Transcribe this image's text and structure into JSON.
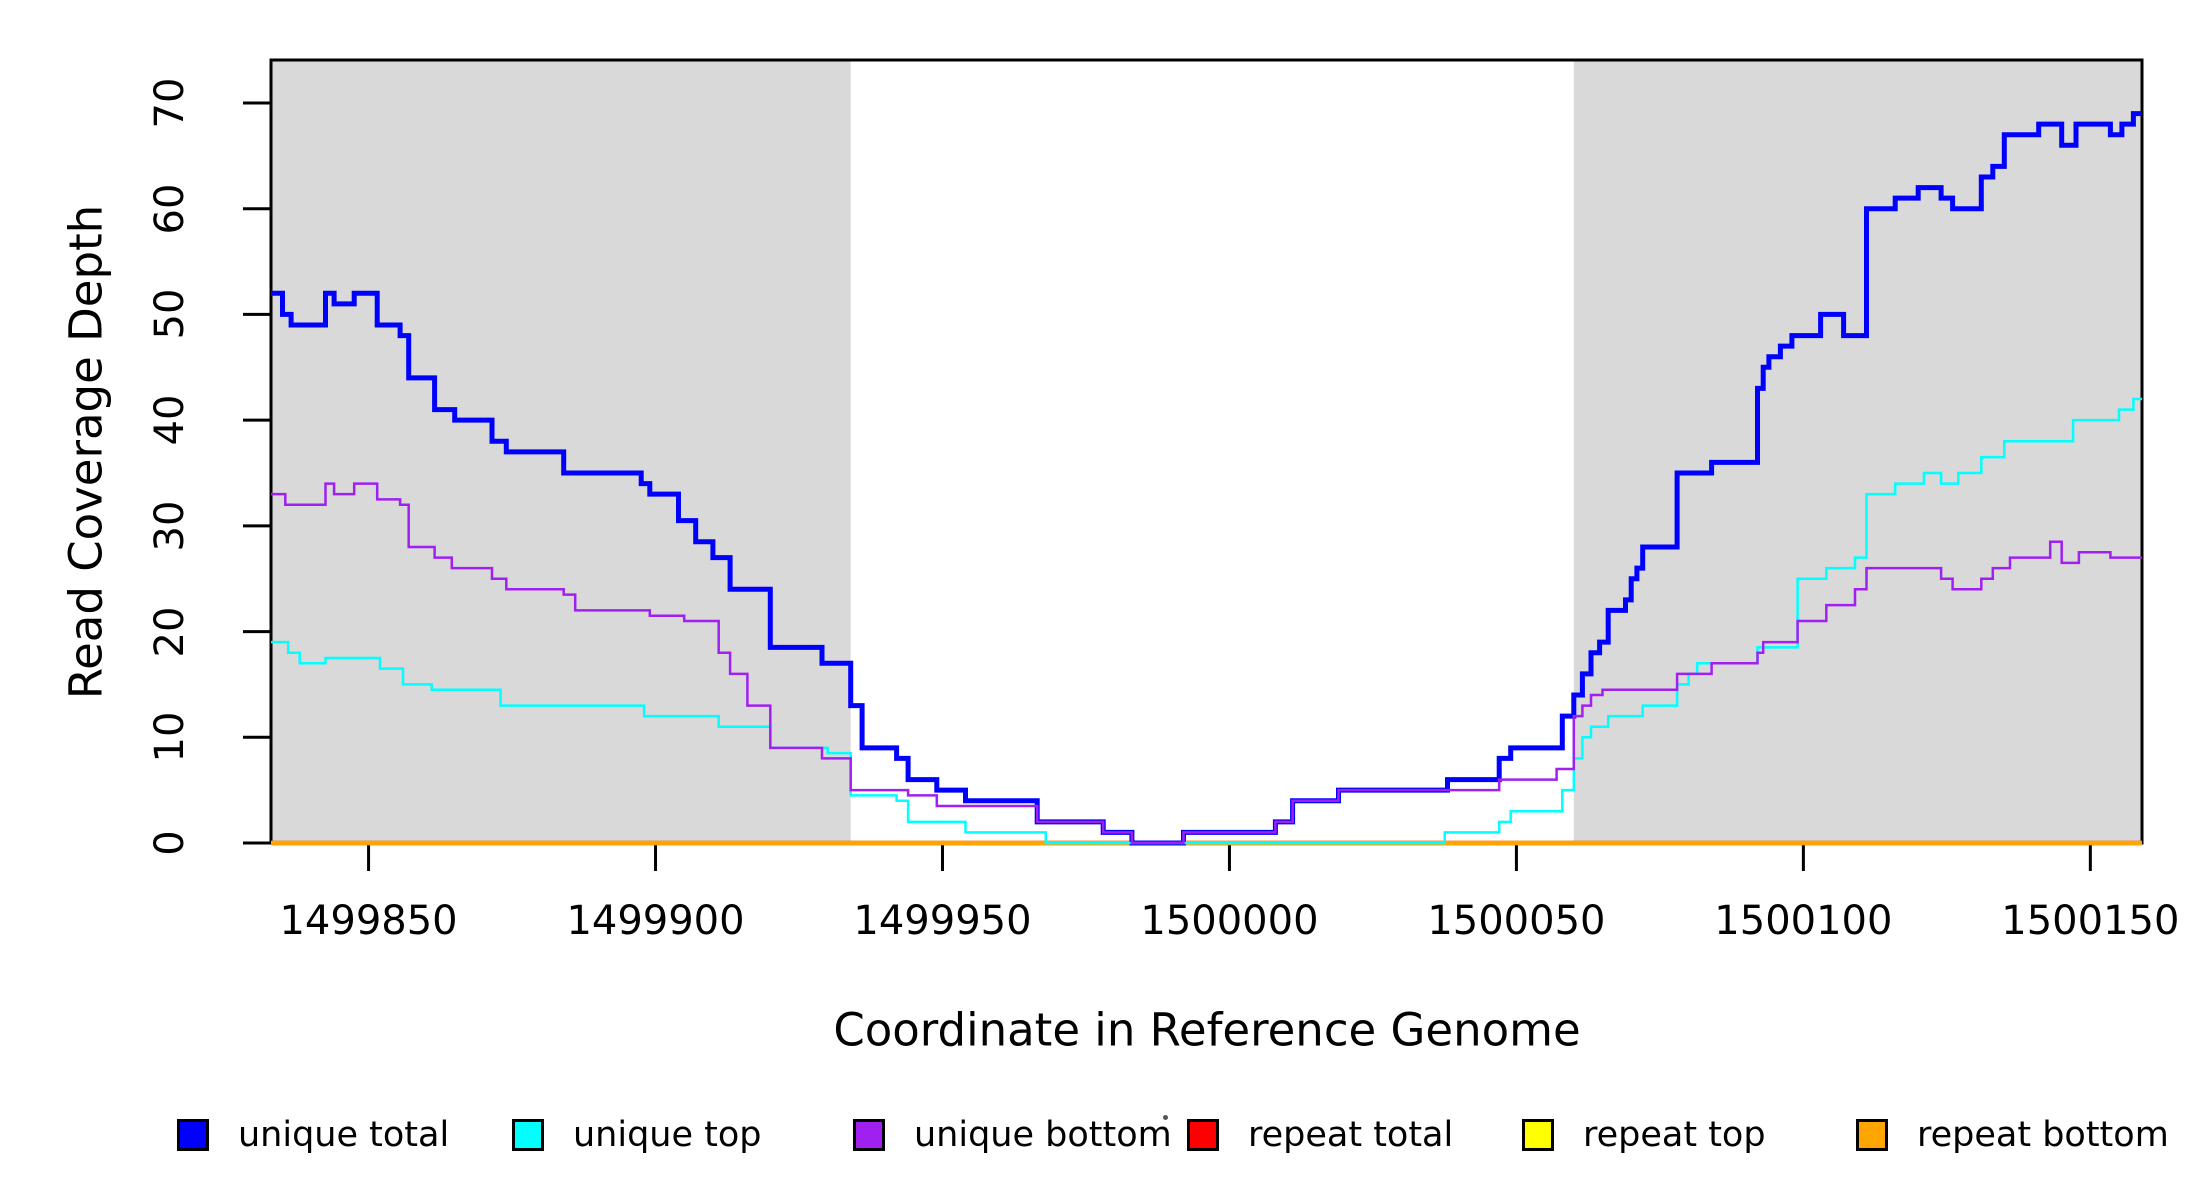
{
  "chart_data": {
    "type": "line",
    "subtype": "step-coverage",
    "title": "",
    "xlabel": "Coordinate in Reference Genome",
    "ylabel": "Read Coverage Depth",
    "xlim": [
      1499833,
      1500159
    ],
    "ylim": [
      0,
      74
    ],
    "x_ticks": [
      1499850,
      1499900,
      1499950,
      1500000,
      1500050,
      1500100,
      1500150
    ],
    "y_ticks": [
      0,
      10,
      20,
      30,
      40,
      50,
      60,
      70
    ],
    "grid": false,
    "plot_background": "#ffffff",
    "band_color": "#d9d9d9",
    "background_bands": [
      {
        "name": "left-repeat-region",
        "from": 1499833,
        "to": 1499934
      },
      {
        "name": "right-repeat-region",
        "from": 1500060,
        "to": 1500159
      }
    ],
    "series": [
      {
        "name": "unique total",
        "color": "#0000ff",
        "width": 5,
        "points": [
          [
            1499833,
            52
          ],
          [
            1499835,
            50
          ],
          [
            1499836.5,
            49
          ],
          [
            1499842.5,
            52
          ],
          [
            1499844,
            51
          ],
          [
            1499847.5,
            52
          ],
          [
            1499851.5,
            49
          ],
          [
            1499855.5,
            48
          ],
          [
            1499857,
            44
          ],
          [
            1499861.5,
            41
          ],
          [
            1499865,
            40
          ],
          [
            1499871.5,
            38
          ],
          [
            1499874,
            37
          ],
          [
            1499884,
            35
          ],
          [
            1499897.5,
            34
          ],
          [
            1499899,
            33
          ],
          [
            1499904,
            30.5
          ],
          [
            1499907,
            28.5
          ],
          [
            1499910,
            27
          ],
          [
            1499913,
            24
          ],
          [
            1499920,
            18.5
          ],
          [
            1499929,
            17
          ],
          [
            1499934,
            13
          ],
          [
            1499936,
            9
          ],
          [
            1499942,
            8
          ],
          [
            1499944,
            6
          ],
          [
            1499949,
            5
          ],
          [
            1499954,
            4
          ],
          [
            1499966.5,
            2
          ],
          [
            1499978,
            1
          ],
          [
            1499983,
            0
          ],
          [
            1499992,
            1
          ],
          [
            1500008,
            2
          ],
          [
            1500011,
            4
          ],
          [
            1500019,
            5
          ],
          [
            1500038,
            6
          ],
          [
            1500047,
            8
          ],
          [
            1500049,
            9
          ],
          [
            1500058,
            12
          ],
          [
            1500060,
            14
          ],
          [
            1500061.5,
            16
          ],
          [
            1500063,
            18
          ],
          [
            1500064.5,
            19
          ],
          [
            1500066,
            22
          ],
          [
            1500069,
            23
          ],
          [
            1500070,
            25
          ],
          [
            1500071,
            26
          ],
          [
            1500072,
            28
          ],
          [
            1500078,
            35
          ],
          [
            1500084,
            36
          ],
          [
            1500092,
            43
          ],
          [
            1500093,
            45
          ],
          [
            1500094,
            46
          ],
          [
            1500096,
            47
          ],
          [
            1500098,
            48
          ],
          [
            1500103,
            50
          ],
          [
            1500107,
            48
          ],
          [
            1500111,
            60
          ],
          [
            1500116,
            61
          ],
          [
            1500120,
            62
          ],
          [
            1500124,
            61
          ],
          [
            1500126,
            60
          ],
          [
            1500131,
            63
          ],
          [
            1500133,
            64
          ],
          [
            1500135,
            67
          ],
          [
            1500141,
            68
          ],
          [
            1500145,
            66
          ],
          [
            1500147.5,
            68
          ],
          [
            1500153.5,
            67
          ],
          [
            1500155.5,
            68
          ],
          [
            1500157.5,
            69
          ]
        ]
      },
      {
        "name": "unique top",
        "color": "#00ffff",
        "width": 2.5,
        "points": [
          [
            1499833,
            19
          ],
          [
            1499836,
            18
          ],
          [
            1499838,
            17
          ],
          [
            1499842.5,
            17.5
          ],
          [
            1499852,
            16.5
          ],
          [
            1499856,
            15
          ],
          [
            1499861,
            14.5
          ],
          [
            1499873,
            13
          ],
          [
            1499898,
            12
          ],
          [
            1499911,
            11
          ],
          [
            1499920,
            9
          ],
          [
            1499930,
            8.5
          ],
          [
            1499934,
            4.5
          ],
          [
            1499942,
            4
          ],
          [
            1499944,
            2
          ],
          [
            1499954,
            1
          ],
          [
            1499968,
            0
          ],
          [
            1500037.5,
            1
          ],
          [
            1500047,
            2
          ],
          [
            1500049,
            3
          ],
          [
            1500058,
            5
          ],
          [
            1500060,
            8
          ],
          [
            1500061.5,
            10
          ],
          [
            1500063,
            11
          ],
          [
            1500066,
            12
          ],
          [
            1500072,
            13
          ],
          [
            1500078,
            15
          ],
          [
            1500080,
            16
          ],
          [
            1500081.5,
            17
          ],
          [
            1500092,
            18.5
          ],
          [
            1500099,
            25
          ],
          [
            1500104,
            26
          ],
          [
            1500109,
            27
          ],
          [
            1500111,
            33
          ],
          [
            1500116,
            34
          ],
          [
            1500121,
            35
          ],
          [
            1500124,
            34
          ],
          [
            1500127,
            35
          ],
          [
            1500131,
            36.5
          ],
          [
            1500135,
            38
          ],
          [
            1500147,
            40
          ],
          [
            1500155,
            41
          ],
          [
            1500157.5,
            42
          ]
        ]
      },
      {
        "name": "unique bottom",
        "color": "#a020f0",
        "width": 2.5,
        "points": [
          [
            1499833,
            33
          ],
          [
            1499835.5,
            32
          ],
          [
            1499842.5,
            34
          ],
          [
            1499844,
            33
          ],
          [
            1499847.5,
            34
          ],
          [
            1499851.5,
            32.5
          ],
          [
            1499855.5,
            32
          ],
          [
            1499857,
            28
          ],
          [
            1499861.5,
            27
          ],
          [
            1499864.5,
            26
          ],
          [
            1499871.5,
            25
          ],
          [
            1499874,
            24
          ],
          [
            1499884,
            23.5
          ],
          [
            1499886,
            22
          ],
          [
            1499899,
            21.5
          ],
          [
            1499905,
            21
          ],
          [
            1499911,
            18
          ],
          [
            1499913,
            16
          ],
          [
            1499916,
            13
          ],
          [
            1499920,
            9
          ],
          [
            1499929,
            8
          ],
          [
            1499934,
            5
          ],
          [
            1499944,
            4.5
          ],
          [
            1499949,
            3.5
          ],
          [
            1499966.5,
            2
          ],
          [
            1499978,
            1
          ],
          [
            1499983,
            0
          ],
          [
            1499992,
            1
          ],
          [
            1500008,
            2
          ],
          [
            1500011,
            4
          ],
          [
            1500019,
            5
          ],
          [
            1500038,
            5
          ],
          [
            1500047,
            6
          ],
          [
            1500057,
            7
          ],
          [
            1500060,
            12
          ],
          [
            1500061.5,
            13
          ],
          [
            1500063,
            14
          ],
          [
            1500065,
            14.5
          ],
          [
            1500078,
            16
          ],
          [
            1500084,
            17
          ],
          [
            1500092,
            18
          ],
          [
            1500093,
            19
          ],
          [
            1500099,
            21
          ],
          [
            1500104,
            22.5
          ],
          [
            1500109,
            24
          ],
          [
            1500111,
            26
          ],
          [
            1500124,
            25
          ],
          [
            1500126,
            24
          ],
          [
            1500131,
            25
          ],
          [
            1500133,
            26
          ],
          [
            1500136,
            27
          ],
          [
            1500143,
            28.5
          ],
          [
            1500145,
            26.5
          ],
          [
            1500148,
            27.5
          ],
          [
            1500153.5,
            27
          ]
        ]
      },
      {
        "name": "repeat total",
        "color": "#ff0000",
        "width": 4.5,
        "points": [
          [
            1499833,
            0
          ]
        ]
      },
      {
        "name": "repeat top",
        "color": "#ffff00",
        "width": 2.5,
        "points": [
          [
            1499833,
            0
          ]
        ]
      },
      {
        "name": "repeat bottom",
        "color": "#ffa500",
        "width": 4.5,
        "points": [
          [
            1499833,
            0
          ]
        ]
      }
    ],
    "draw_order": [
      "repeat total",
      "repeat top",
      "repeat bottom",
      "unique total",
      "unique top",
      "unique bottom"
    ],
    "legend": {
      "position": "bottom",
      "entries": [
        {
          "label": "unique total",
          "color": "#0000ff"
        },
        {
          "label": "unique top",
          "color": "#00ffff"
        },
        {
          "label": "unique bottom",
          "color": "#a020f0"
        },
        {
          "label": "repeat total",
          "color": "#ff0000"
        },
        {
          "label": "repeat top",
          "color": "#ffff00"
        },
        {
          "label": "repeat bottom",
          "color": "#ffa500"
        }
      ]
    }
  }
}
